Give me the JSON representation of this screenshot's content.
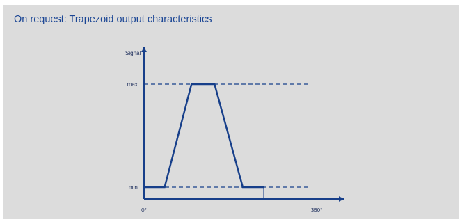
{
  "panel": {
    "title": "On request: Trapezoid output characteristics"
  },
  "colors": {
    "background": "#dcdcdc",
    "accent": "#1a4594",
    "line": "#173f8a",
    "text": "#1d2e5c"
  },
  "chart_data": {
    "type": "line",
    "title": "",
    "ylabel": "Signal",
    "xlabel": "",
    "x_tick_labels": [
      "0°",
      "360°"
    ],
    "y_tick_labels": [
      "min.",
      "max."
    ],
    "xlim": [
      0,
      360
    ],
    "ylim": [
      0,
      1
    ],
    "grid": false,
    "series": [
      {
        "x": [
          0,
          43,
          99,
          147,
          206,
          250
        ],
        "y": [
          0,
          0,
          1,
          1,
          0,
          0
        ]
      }
    ],
    "reference_lines": [
      {
        "label": "max.",
        "y": 1,
        "style": "dashed"
      },
      {
        "label": "min.",
        "y": 0,
        "style": "dashed"
      }
    ]
  }
}
